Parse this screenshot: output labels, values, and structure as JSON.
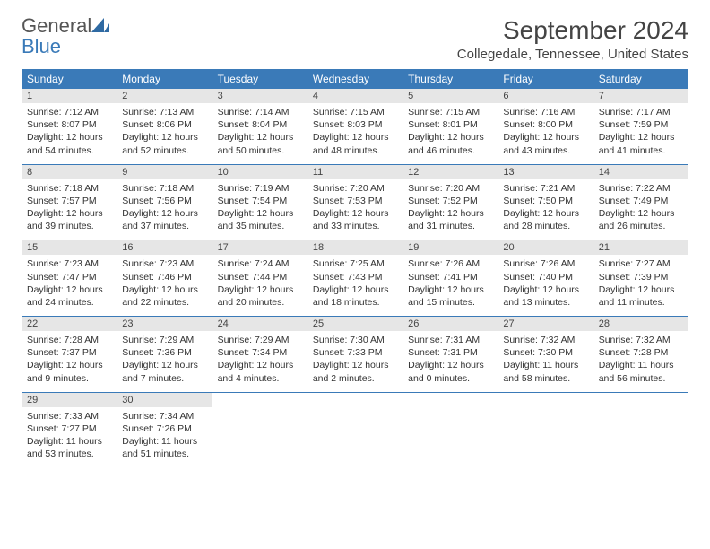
{
  "logo": {
    "general": "General",
    "blue": "Blue"
  },
  "title": "September 2024",
  "location": "Collegedale, Tennessee, United States",
  "dayHeaders": [
    "Sunday",
    "Monday",
    "Tuesday",
    "Wednesday",
    "Thursday",
    "Friday",
    "Saturday"
  ],
  "header_bg": "#3a7ab8",
  "header_fg": "#ffffff",
  "daynum_bg": "#e6e6e6",
  "border_color": "#3a7ab8",
  "font_body_size": 10.5,
  "font_header_size": 12,
  "title_fontsize": 28,
  "location_fontsize": 15,
  "weeks": [
    [
      {
        "day": "1",
        "sunrise": "Sunrise: 7:12 AM",
        "sunset": "Sunset: 8:07 PM",
        "dl1": "Daylight: 12 hours",
        "dl2": "and 54 minutes."
      },
      {
        "day": "2",
        "sunrise": "Sunrise: 7:13 AM",
        "sunset": "Sunset: 8:06 PM",
        "dl1": "Daylight: 12 hours",
        "dl2": "and 52 minutes."
      },
      {
        "day": "3",
        "sunrise": "Sunrise: 7:14 AM",
        "sunset": "Sunset: 8:04 PM",
        "dl1": "Daylight: 12 hours",
        "dl2": "and 50 minutes."
      },
      {
        "day": "4",
        "sunrise": "Sunrise: 7:15 AM",
        "sunset": "Sunset: 8:03 PM",
        "dl1": "Daylight: 12 hours",
        "dl2": "and 48 minutes."
      },
      {
        "day": "5",
        "sunrise": "Sunrise: 7:15 AM",
        "sunset": "Sunset: 8:01 PM",
        "dl1": "Daylight: 12 hours",
        "dl2": "and 46 minutes."
      },
      {
        "day": "6",
        "sunrise": "Sunrise: 7:16 AM",
        "sunset": "Sunset: 8:00 PM",
        "dl1": "Daylight: 12 hours",
        "dl2": "and 43 minutes."
      },
      {
        "day": "7",
        "sunrise": "Sunrise: 7:17 AM",
        "sunset": "Sunset: 7:59 PM",
        "dl1": "Daylight: 12 hours",
        "dl2": "and 41 minutes."
      }
    ],
    [
      {
        "day": "8",
        "sunrise": "Sunrise: 7:18 AM",
        "sunset": "Sunset: 7:57 PM",
        "dl1": "Daylight: 12 hours",
        "dl2": "and 39 minutes."
      },
      {
        "day": "9",
        "sunrise": "Sunrise: 7:18 AM",
        "sunset": "Sunset: 7:56 PM",
        "dl1": "Daylight: 12 hours",
        "dl2": "and 37 minutes."
      },
      {
        "day": "10",
        "sunrise": "Sunrise: 7:19 AM",
        "sunset": "Sunset: 7:54 PM",
        "dl1": "Daylight: 12 hours",
        "dl2": "and 35 minutes."
      },
      {
        "day": "11",
        "sunrise": "Sunrise: 7:20 AM",
        "sunset": "Sunset: 7:53 PM",
        "dl1": "Daylight: 12 hours",
        "dl2": "and 33 minutes."
      },
      {
        "day": "12",
        "sunrise": "Sunrise: 7:20 AM",
        "sunset": "Sunset: 7:52 PM",
        "dl1": "Daylight: 12 hours",
        "dl2": "and 31 minutes."
      },
      {
        "day": "13",
        "sunrise": "Sunrise: 7:21 AM",
        "sunset": "Sunset: 7:50 PM",
        "dl1": "Daylight: 12 hours",
        "dl2": "and 28 minutes."
      },
      {
        "day": "14",
        "sunrise": "Sunrise: 7:22 AM",
        "sunset": "Sunset: 7:49 PM",
        "dl1": "Daylight: 12 hours",
        "dl2": "and 26 minutes."
      }
    ],
    [
      {
        "day": "15",
        "sunrise": "Sunrise: 7:23 AM",
        "sunset": "Sunset: 7:47 PM",
        "dl1": "Daylight: 12 hours",
        "dl2": "and 24 minutes."
      },
      {
        "day": "16",
        "sunrise": "Sunrise: 7:23 AM",
        "sunset": "Sunset: 7:46 PM",
        "dl1": "Daylight: 12 hours",
        "dl2": "and 22 minutes."
      },
      {
        "day": "17",
        "sunrise": "Sunrise: 7:24 AM",
        "sunset": "Sunset: 7:44 PM",
        "dl1": "Daylight: 12 hours",
        "dl2": "and 20 minutes."
      },
      {
        "day": "18",
        "sunrise": "Sunrise: 7:25 AM",
        "sunset": "Sunset: 7:43 PM",
        "dl1": "Daylight: 12 hours",
        "dl2": "and 18 minutes."
      },
      {
        "day": "19",
        "sunrise": "Sunrise: 7:26 AM",
        "sunset": "Sunset: 7:41 PM",
        "dl1": "Daylight: 12 hours",
        "dl2": "and 15 minutes."
      },
      {
        "day": "20",
        "sunrise": "Sunrise: 7:26 AM",
        "sunset": "Sunset: 7:40 PM",
        "dl1": "Daylight: 12 hours",
        "dl2": "and 13 minutes."
      },
      {
        "day": "21",
        "sunrise": "Sunrise: 7:27 AM",
        "sunset": "Sunset: 7:39 PM",
        "dl1": "Daylight: 12 hours",
        "dl2": "and 11 minutes."
      }
    ],
    [
      {
        "day": "22",
        "sunrise": "Sunrise: 7:28 AM",
        "sunset": "Sunset: 7:37 PM",
        "dl1": "Daylight: 12 hours",
        "dl2": "and 9 minutes."
      },
      {
        "day": "23",
        "sunrise": "Sunrise: 7:29 AM",
        "sunset": "Sunset: 7:36 PM",
        "dl1": "Daylight: 12 hours",
        "dl2": "and 7 minutes."
      },
      {
        "day": "24",
        "sunrise": "Sunrise: 7:29 AM",
        "sunset": "Sunset: 7:34 PM",
        "dl1": "Daylight: 12 hours",
        "dl2": "and 4 minutes."
      },
      {
        "day": "25",
        "sunrise": "Sunrise: 7:30 AM",
        "sunset": "Sunset: 7:33 PM",
        "dl1": "Daylight: 12 hours",
        "dl2": "and 2 minutes."
      },
      {
        "day": "26",
        "sunrise": "Sunrise: 7:31 AM",
        "sunset": "Sunset: 7:31 PM",
        "dl1": "Daylight: 12 hours",
        "dl2": "and 0 minutes."
      },
      {
        "day": "27",
        "sunrise": "Sunrise: 7:32 AM",
        "sunset": "Sunset: 7:30 PM",
        "dl1": "Daylight: 11 hours",
        "dl2": "and 58 minutes."
      },
      {
        "day": "28",
        "sunrise": "Sunrise: 7:32 AM",
        "sunset": "Sunset: 7:28 PM",
        "dl1": "Daylight: 11 hours",
        "dl2": "and 56 minutes."
      }
    ],
    [
      {
        "day": "29",
        "sunrise": "Sunrise: 7:33 AM",
        "sunset": "Sunset: 7:27 PM",
        "dl1": "Daylight: 11 hours",
        "dl2": "and 53 minutes."
      },
      {
        "day": "30",
        "sunrise": "Sunrise: 7:34 AM",
        "sunset": "Sunset: 7:26 PM",
        "dl1": "Daylight: 11 hours",
        "dl2": "and 51 minutes."
      },
      null,
      null,
      null,
      null,
      null
    ]
  ]
}
